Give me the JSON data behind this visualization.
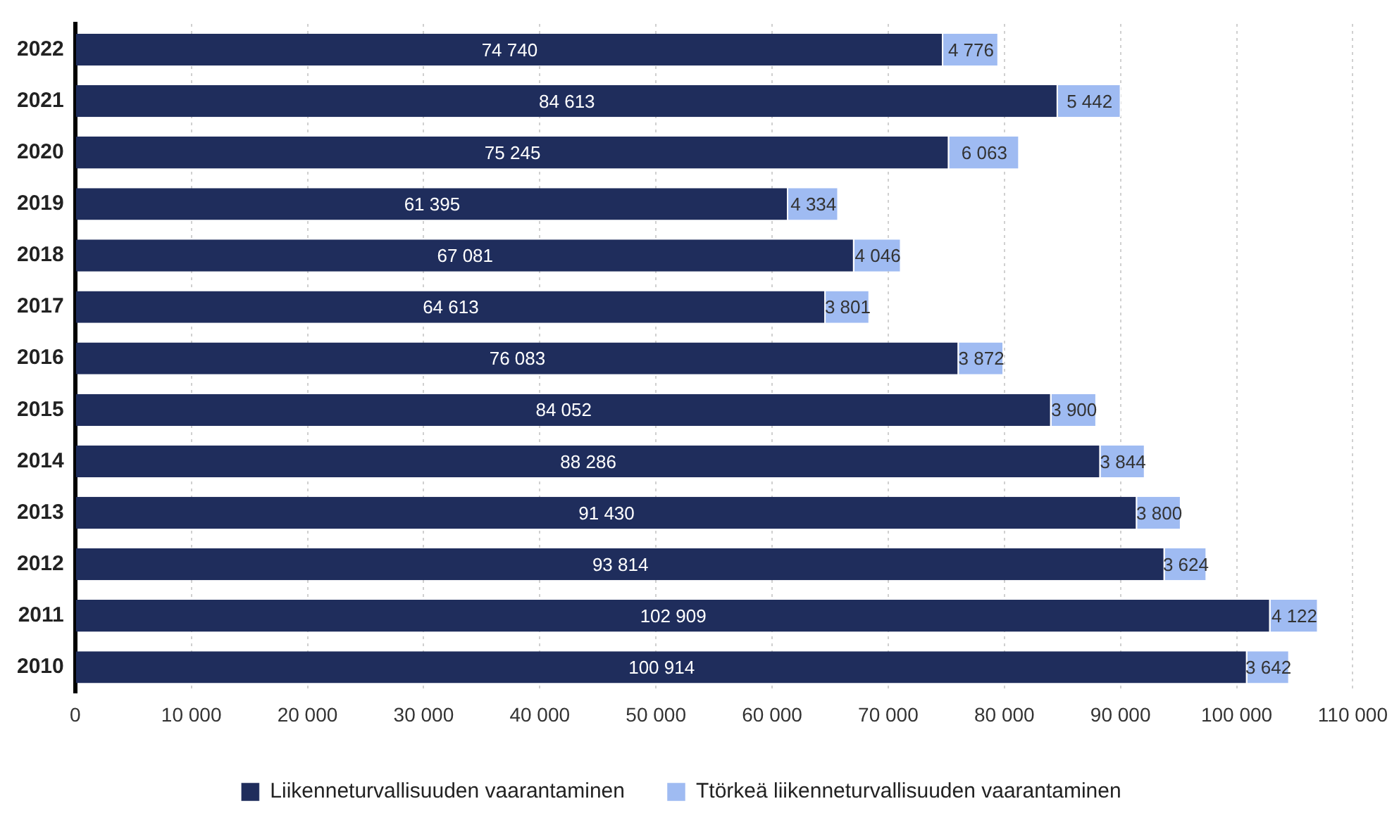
{
  "chart_data": {
    "type": "bar",
    "orientation": "horizontal",
    "stacked": true,
    "categories": [
      "2022",
      "2021",
      "2020",
      "2019",
      "2018",
      "2017",
      "2016",
      "2015",
      "2014",
      "2013",
      "2012",
      "2011",
      "2010"
    ],
    "series": [
      {
        "name": "Liikenneturvallisuuden vaarantaminen",
        "color": "#1f2d5c",
        "values": [
          74740,
          84613,
          75245,
          61395,
          67081,
          64613,
          76083,
          84052,
          88286,
          91430,
          93814,
          102909,
          100914
        ],
        "value_labels": [
          "74 740",
          "84 613",
          "75 245",
          "61 395",
          "67 081",
          "64 613",
          "76 083",
          "84 052",
          "88 286",
          "91 430",
          "93 814",
          "102 909",
          "100 914"
        ]
      },
      {
        "name": "Ttörkeä liikenneturvallisuuden vaarantaminen",
        "color": "#9fbbf2",
        "values": [
          4776,
          5442,
          6063,
          4334,
          4046,
          3801,
          3872,
          3900,
          3844,
          3800,
          3624,
          4122,
          3642
        ],
        "value_labels": [
          "4 776",
          "5 442",
          "6 063",
          "4 334",
          "4 046",
          "3 801",
          "3 872",
          "3 900",
          "3 844",
          "3 800",
          "3 624",
          "4 122",
          "3 642"
        ]
      }
    ],
    "xlim": [
      0,
      110000
    ],
    "xticks": [
      0,
      {
        "value": 10000,
        "label": "10 000"
      },
      {
        "value": 20000,
        "label": "20 000"
      },
      {
        "value": 30000,
        "label": "30 000"
      },
      {
        "value": 40000,
        "label": "40 000"
      },
      {
        "value": 50000,
        "label": "50 000"
      },
      {
        "value": 60000,
        "label": "60 000"
      },
      {
        "value": 70000,
        "label": "70 000"
      },
      {
        "value": 80000,
        "label": "80 000"
      },
      {
        "value": 90000,
        "label": "90 000"
      },
      {
        "value": 100000,
        "label": "100 000"
      },
      {
        "value": 110000,
        "label": "110 000"
      }
    ],
    "grid": "x",
    "legend": "bottom"
  }
}
